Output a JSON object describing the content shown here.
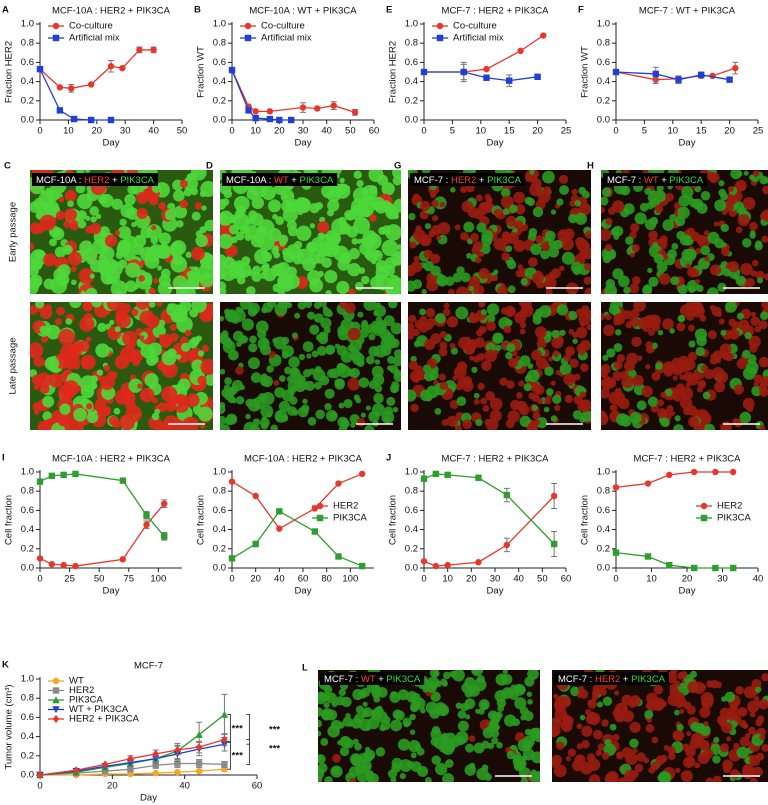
{
  "chart_data": [
    {
      "type": "line",
      "panel": "A",
      "title": "MCF-10A : HER2 + PIK3CA",
      "x_label": "Day",
      "y_label": "Fraction HER2",
      "xlim": [
        0,
        50
      ],
      "xticks": [
        0,
        10,
        20,
        30,
        40,
        50
      ],
      "ylim": [
        0,
        1
      ],
      "yticks": [
        {
          "value": 0,
          "label": "0.0"
        },
        0.2,
        0.4,
        0.6,
        0.8,
        {
          "value": 1,
          "label": "1.0"
        }
      ],
      "legend": "upper left",
      "series": [
        {
          "name": "Co-culture",
          "color": "#e8372a",
          "marker": "circle",
          "x": [
            0,
            7,
            11,
            18,
            25,
            29,
            35,
            40
          ],
          "values": [
            0.53,
            0.34,
            0.33,
            0.37,
            0.56,
            0.54,
            0.73,
            0.73
          ],
          "errors": [
            null,
            null,
            0.04,
            null,
            0.06,
            null,
            0.03,
            0.03
          ]
        },
        {
          "name": "Artificial mix",
          "color": "#1f3fd6",
          "marker": "square",
          "x": [
            0,
            7,
            12,
            18,
            25
          ],
          "values": [
            0.53,
            0.1,
            0.01,
            0,
            0
          ]
        }
      ]
    },
    {
      "type": "line",
      "panel": "B",
      "title": "MCF-10A : WT + PIK3CA",
      "x_label": "Day",
      "y_label": "Fraction WT",
      "xlim": [
        0,
        60
      ],
      "xticks": [
        0,
        10,
        20,
        30,
        40,
        50,
        60
      ],
      "ylim": [
        0,
        1
      ],
      "yticks": [
        {
          "value": 0,
          "label": "0.0"
        },
        0.2,
        0.4,
        0.6,
        0.8,
        {
          "value": 1,
          "label": "1.0"
        }
      ],
      "legend": "upper left",
      "series": [
        {
          "name": "Co-culture",
          "color": "#e8372a",
          "marker": "circle",
          "x": [
            0,
            7,
            10,
            16,
            30,
            36,
            43,
            52
          ],
          "values": [
            0.52,
            0.14,
            0.09,
            0.09,
            0.13,
            0.12,
            0.15,
            0.08
          ],
          "errors": [
            null,
            null,
            null,
            null,
            0.05,
            null,
            0.04,
            0.03
          ]
        },
        {
          "name": "Artificial mix",
          "color": "#1f3fd6",
          "marker": "square",
          "x": [
            0,
            7,
            10,
            16,
            20,
            25
          ],
          "values": [
            0.52,
            0.1,
            0.02,
            0.01,
            0,
            0
          ]
        }
      ]
    },
    {
      "type": "line",
      "panel": "E",
      "title": "MCF-7 : HER2 + PIK3CA",
      "x_label": "Day",
      "y_label": "Fraction HER2",
      "xlim": [
        0,
        25
      ],
      "xticks": [
        0,
        5,
        10,
        15,
        20,
        25
      ],
      "ylim": [
        0,
        1
      ],
      "yticks": [
        {
          "value": 0,
          "label": "0.0"
        },
        0.2,
        0.4,
        0.6,
        0.8,
        {
          "value": 1,
          "label": "1.0"
        }
      ],
      "legend": "upper left",
      "series": [
        {
          "name": "Co-culture",
          "color": "#e8372a",
          "marker": "circle",
          "x": [
            0,
            7,
            11,
            17,
            21
          ],
          "values": [
            0.5,
            0.5,
            0.53,
            0.72,
            0.88
          ],
          "errors": [
            null,
            0.1,
            null,
            null,
            null
          ]
        },
        {
          "name": "Artificial mix",
          "color": "#1f3fd6",
          "marker": "square",
          "x": [
            0,
            7,
            11,
            15,
            20
          ],
          "values": [
            0.5,
            0.5,
            0.44,
            0.41,
            0.45
          ],
          "errors": [
            null,
            0.08,
            null,
            0.06,
            null
          ]
        }
      ]
    },
    {
      "type": "line",
      "panel": "F",
      "title": "MCF-7 : WT + PIK3CA",
      "x_label": "Day",
      "y_label": "Fraction  WT",
      "xlim": [
        0,
        25
      ],
      "xticks": [
        0,
        5,
        10,
        15,
        20,
        25
      ],
      "ylim": [
        0,
        1
      ],
      "yticks": [
        {
          "value": 0,
          "label": "0.0"
        },
        0.2,
        0.4,
        0.6,
        0.8,
        {
          "value": 1,
          "label": "1.0"
        }
      ],
      "series": [
        {
          "name": "Co-culture",
          "color": "#e8372a",
          "marker": "circle",
          "x": [
            0,
            7,
            11,
            15,
            17,
            21
          ],
          "values": [
            0.5,
            0.42,
            0.43,
            0.46,
            0.46,
            0.54
          ],
          "errors": [
            null,
            0.04,
            null,
            null,
            null,
            0.06
          ]
        },
        {
          "name": "Artificial mix",
          "color": "#1f3fd6",
          "marker": "square",
          "x": [
            0,
            7,
            11,
            15,
            20
          ],
          "values": [
            0.5,
            0.48,
            0.42,
            0.47,
            0.42
          ],
          "errors": [
            null,
            0.07,
            0.04,
            0.03,
            null
          ]
        }
      ]
    },
    {
      "type": "line",
      "panel": "I",
      "title": "MCF-10A : HER2 + PIK3CA",
      "x_label": "Day",
      "y_label": "Cell fraction",
      "xlim": [
        0,
        120
      ],
      "xticks": [
        0,
        25,
        50,
        75,
        100
      ],
      "ylim": [
        0,
        1
      ],
      "yticks": [
        {
          "value": 0,
          "label": "0.0"
        },
        0.2,
        0.4,
        0.6,
        0.8,
        {
          "value": 1,
          "label": "1.0"
        }
      ],
      "series": [
        {
          "name": "HER2",
          "color": "#e8372a",
          "marker": "circle",
          "x": [
            0,
            10,
            20,
            30,
            70,
            90,
            105
          ],
          "values": [
            0.1,
            0.04,
            0.03,
            0.02,
            0.09,
            0.45,
            0.67
          ],
          "errors": [
            null,
            null,
            null,
            null,
            null,
            0.04,
            0.04
          ]
        },
        {
          "name": "PIK3CA",
          "color": "#2e9e2e",
          "marker": "square",
          "x": [
            0,
            10,
            20,
            30,
            70,
            90,
            105
          ],
          "values": [
            0.9,
            0.96,
            0.97,
            0.98,
            0.91,
            0.55,
            0.33
          ],
          "errors": [
            null,
            null,
            null,
            null,
            null,
            0.04,
            0.04
          ]
        }
      ]
    },
    {
      "type": "line",
      "title": "MCF-10A : HER2 + PIK3CA",
      "x_label": "Day",
      "y_label": "Cell fraction",
      "xlim": [
        0,
        120
      ],
      "xticks": [
        0,
        20,
        40,
        60,
        80,
        100
      ],
      "ylim": [
        0,
        1
      ],
      "yticks": [
        {
          "value": 0,
          "label": "0.0"
        },
        0.2,
        0.4,
        0.6,
        0.8,
        {
          "value": 1,
          "label": "1.0"
        }
      ],
      "legend": "center right",
      "series": [
        {
          "name": "HER2",
          "color": "#e8372a",
          "marker": "circle",
          "x": [
            0,
            20,
            40,
            70,
            90,
            110
          ],
          "values": [
            0.9,
            0.75,
            0.41,
            0.62,
            0.88,
            0.98
          ]
        },
        {
          "name": "PIK3CA",
          "color": "#2e9e2e",
          "marker": "square",
          "x": [
            0,
            20,
            40,
            70,
            90,
            110
          ],
          "values": [
            0.1,
            0.25,
            0.59,
            0.38,
            0.12,
            0.02
          ]
        }
      ]
    },
    {
      "type": "line",
      "panel": "J",
      "title": "MCF-7 : HER2 + PIK3CA",
      "x_label": "Day",
      "y_label": "Cell fraction",
      "xlim": [
        0,
        60
      ],
      "xticks": [
        0,
        10,
        20,
        30,
        40,
        50,
        60
      ],
      "ylim": [
        0,
        1
      ],
      "yticks": [
        {
          "value": 0,
          "label": "0.0"
        },
        0.2,
        0.4,
        0.6,
        0.8,
        {
          "value": 1,
          "label": "1.0"
        }
      ],
      "series": [
        {
          "name": "HER2",
          "color": "#e8372a",
          "marker": "circle",
          "x": [
            0,
            5,
            10,
            23,
            35,
            55
          ],
          "values": [
            0.07,
            0.02,
            0.03,
            0.06,
            0.24,
            0.75
          ],
          "errors": [
            null,
            null,
            null,
            null,
            0.07,
            0.13
          ]
        },
        {
          "name": "PIK3CA",
          "color": "#2e9e2e",
          "marker": "square",
          "x": [
            0,
            5,
            10,
            23,
            35,
            55
          ],
          "values": [
            0.93,
            0.98,
            0.97,
            0.94,
            0.76,
            0.25
          ],
          "errors": [
            null,
            null,
            null,
            null,
            0.07,
            0.13
          ]
        }
      ]
    },
    {
      "type": "line",
      "title": "MCF-7 : HER2 + PIK3CA",
      "x_label": "Day",
      "y_label": "Cell fraction",
      "xlim": [
        0,
        40
      ],
      "xticks": [
        0,
        10,
        20,
        30,
        40
      ],
      "ylim": [
        0,
        1
      ],
      "yticks": [
        {
          "value": 0,
          "label": "0.0"
        },
        0.2,
        0.4,
        0.6,
        0.8,
        {
          "value": 1,
          "label": "1.0"
        }
      ],
      "legend": "center right",
      "series": [
        {
          "name": "HER2",
          "color": "#e8372a",
          "marker": "circle",
          "x": [
            0,
            9,
            15,
            22,
            28,
            33
          ],
          "values": [
            0.84,
            0.88,
            0.97,
            1,
            1,
            1
          ]
        },
        {
          "name": "PIK3CA",
          "color": "#2e9e2e",
          "marker": "square",
          "x": [
            0,
            9,
            15,
            22,
            28,
            33
          ],
          "values": [
            0.16,
            0.12,
            0.03,
            0,
            0,
            0
          ]
        }
      ]
    },
    {
      "type": "line",
      "panel": "K",
      "title": "MCF-7",
      "x_label": "Day",
      "y_label": "Tumor volume (cm³)",
      "xlim": [
        0,
        60
      ],
      "xticks": [
        0,
        20,
        40,
        60
      ],
      "ylim": [
        0,
        1
      ],
      "yticks": [
        {
          "value": 0,
          "label": "0.0"
        },
        0.2,
        0.4,
        0.6,
        0.8,
        {
          "value": 1,
          "label": "1.0"
        }
      ],
      "legend": "upper left",
      "annotations": [
        "***",
        "***",
        "***",
        "***"
      ],
      "series": [
        {
          "name": "WT",
          "color": "#f5a623",
          "marker": "circle",
          "x": [
            0,
            10,
            18,
            25,
            32,
            38,
            44,
            51
          ],
          "values": [
            0,
            0,
            0.01,
            0.01,
            0.02,
            0.03,
            0.04,
            0.06
          ],
          "errors": [
            null,
            null,
            null,
            null,
            null,
            0.01,
            0.01,
            0.02
          ]
        },
        {
          "name": "HER2",
          "color": "#8a8a8a",
          "marker": "square",
          "x": [
            0,
            10,
            18,
            25,
            32,
            38,
            44,
            51
          ],
          "values": [
            0,
            0.02,
            0.04,
            0.06,
            0.1,
            0.12,
            0.12,
            0.11
          ],
          "errors": [
            null,
            null,
            null,
            0.02,
            0.03,
            0.04,
            0.04,
            0.03
          ]
        },
        {
          "name": "PIK3CA",
          "color": "#2e9e2e",
          "marker": "triangle",
          "x": [
            0,
            10,
            18,
            25,
            32,
            38,
            44,
            51
          ],
          "values": [
            0,
            0.03,
            0.08,
            0.12,
            0.17,
            0.25,
            0.42,
            0.63
          ],
          "errors": [
            null,
            null,
            null,
            0.03,
            0.05,
            0.08,
            0.13,
            0.21
          ]
        },
        {
          "name": "WT + PIK3CA",
          "color": "#1f3fd6",
          "marker": "triangle-down",
          "x": [
            0,
            10,
            18,
            25,
            32,
            38,
            44,
            51
          ],
          "values": [
            0,
            0.04,
            0.09,
            0.13,
            0.17,
            0.22,
            0.27,
            0.32
          ],
          "errors": [
            null,
            null,
            null,
            0.04,
            0.05,
            0.08,
            0.07,
            0.07
          ]
        },
        {
          "name": "HER2 + PIK3CA",
          "color": "#e8372a",
          "marker": "diamond",
          "x": [
            0,
            10,
            18,
            25,
            32,
            38,
            44,
            51
          ],
          "values": [
            0,
            0.05,
            0.11,
            0.17,
            0.22,
            0.26,
            0.29,
            0.37
          ],
          "errors": [
            null,
            null,
            null,
            0.03,
            0.04,
            0.05,
            0.06,
            0.06
          ]
        }
      ]
    }
  ],
  "row_labels": [
    "Early passage",
    "Late passage"
  ],
  "images": [
    {
      "panel": "C",
      "labels": [
        [
          {
            "text": "MCF-10A : ",
            "color": "#ffffff"
          },
          {
            "text": "HER2",
            "color": "#ff3b3b"
          },
          {
            "text": " + ",
            "color": "#ffffff"
          },
          {
            "text": "PIK3CA",
            "color": "#3fdc3f"
          }
        ]
      ]
    },
    {
      "panel": "D",
      "labels": [
        [
          {
            "text": "MCF-10A : ",
            "color": "#ffffff"
          },
          {
            "text": "WT",
            "color": "#ff3b3b"
          },
          {
            "text": " + ",
            "color": "#ffffff"
          },
          {
            "text": "PIK3CA",
            "color": "#3fdc3f"
          }
        ]
      ]
    },
    {
      "panel": "G",
      "labels": [
        [
          {
            "text": "MCF-7 : ",
            "color": "#ffffff"
          },
          {
            "text": "HER2",
            "color": "#ff3b3b"
          },
          {
            "text": " + ",
            "color": "#ffffff"
          },
          {
            "text": "PIK3CA",
            "color": "#3fdc3f"
          }
        ]
      ]
    },
    {
      "panel": "H",
      "labels": [
        [
          {
            "text": "MCF-7 : ",
            "color": "#ffffff"
          },
          {
            "text": "WT",
            "color": "#ff3b3b"
          },
          {
            "text": " + ",
            "color": "#ffffff"
          },
          {
            "text": "PIK3CA",
            "color": "#3fdc3f"
          }
        ]
      ]
    },
    {
      "panel": "L",
      "labels": [
        [
          {
            "text": "MCF-7 : ",
            "color": "#ffffff"
          },
          {
            "text": "WT",
            "color": "#ff3b3b"
          },
          {
            "text": " + ",
            "color": "#ffffff"
          },
          {
            "text": "PIK3CA",
            "color": "#3fdc3f"
          }
        ],
        [
          {
            "text": "MCF-7 : ",
            "color": "#ffffff"
          },
          {
            "text": "HER2",
            "color": "#ff3b3b"
          },
          {
            "text": " + ",
            "color": "#ffffff"
          },
          {
            "text": "PIK3CA",
            "color": "#3fdc3f"
          }
        ]
      ]
    }
  ]
}
